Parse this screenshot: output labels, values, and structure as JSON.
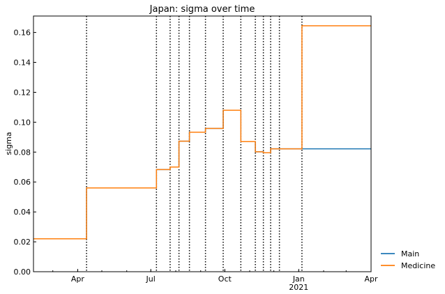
{
  "chart_data": {
    "type": "line",
    "step": true,
    "title": "Japan: sigma over time",
    "xlabel": "",
    "ylabel": "sigma",
    "xlim": [
      "2020-02-06",
      "2021-04-01"
    ],
    "ylim": [
      0,
      0.171
    ],
    "yticks": [
      0.0,
      0.02,
      0.04,
      0.06,
      0.08,
      0.1,
      0.12,
      0.14,
      0.16
    ],
    "ytick_labels": [
      "0.00",
      "0.02",
      "0.04",
      "0.06",
      "0.08",
      "0.10",
      "0.12",
      "0.14",
      "0.16"
    ],
    "xticks": [
      {
        "date": "2020-04-01",
        "label": "Apr"
      },
      {
        "date": "2020-07-01",
        "label": "Jul"
      },
      {
        "date": "2020-10-01",
        "label": "Oct"
      },
      {
        "date": "2021-01-01",
        "label": "Jan",
        "sublabel": "2021"
      },
      {
        "date": "2021-04-01",
        "label": "Apr"
      }
    ],
    "minor_xticks": "monthly",
    "grid": false,
    "legend": {
      "placement": "lower-right outside"
    },
    "change_points": [
      "2020-04-12",
      "2020-07-08",
      "2020-07-25",
      "2020-08-05",
      "2020-08-18",
      "2020-09-07",
      "2020-09-29",
      "2020-10-21",
      "2020-11-08",
      "2020-11-18",
      "2020-11-27",
      "2020-12-08",
      "2021-01-05"
    ],
    "series": [
      {
        "name": "Main",
        "color": "#1f77b4",
        "x": [
          "2020-02-06",
          "2020-04-12",
          "2020-07-08",
          "2020-07-25",
          "2020-08-05",
          "2020-08-18",
          "2020-09-07",
          "2020-09-29",
          "2020-10-21",
          "2020-11-08",
          "2020-11-18",
          "2020-11-27",
          "2021-01-05",
          "2021-04-01"
        ],
        "y": [
          0.022,
          0.056,
          0.0683,
          0.07,
          0.0873,
          0.0933,
          0.0958,
          0.108,
          0.087,
          0.0802,
          0.0796,
          0.0822,
          0.0822,
          0.0822
        ]
      },
      {
        "name": "Medicine",
        "color": "#ff7f0e",
        "x": [
          "2020-02-06",
          "2020-04-12",
          "2020-07-08",
          "2020-07-25",
          "2020-08-05",
          "2020-08-18",
          "2020-09-07",
          "2020-09-29",
          "2020-10-21",
          "2020-11-08",
          "2020-11-18",
          "2020-11-27",
          "2021-01-05",
          "2021-04-01"
        ],
        "y": [
          0.022,
          0.056,
          0.0683,
          0.07,
          0.0873,
          0.0933,
          0.0958,
          0.108,
          0.087,
          0.0802,
          0.0796,
          0.0822,
          0.1645,
          0.1645
        ]
      }
    ]
  }
}
